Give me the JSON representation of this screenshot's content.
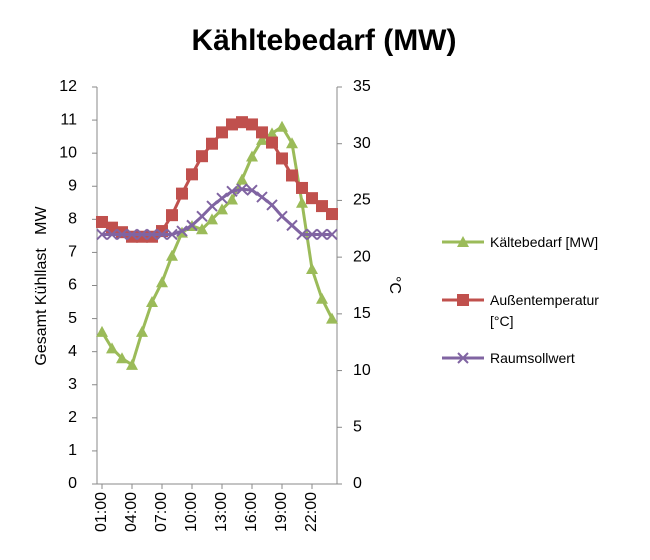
{
  "chart_data": {
    "type": "line",
    "title": "Kähltebedarf (MW)",
    "y_label": "Gesamt Kühllast   MW",
    "y2_label": "°C",
    "categories": [
      "01:00",
      null,
      null,
      "04:00",
      null,
      null,
      "07:00",
      null,
      null,
      "10:00",
      null,
      null,
      "13:00",
      null,
      null,
      "16:00",
      null,
      null,
      "19:00",
      null,
      null,
      "22:00",
      null,
      null
    ],
    "ylim": [
      0,
      12
    ],
    "yticks": [
      0,
      1,
      2,
      3,
      4,
      5,
      6,
      7,
      8,
      9,
      10,
      11,
      12
    ],
    "y2lim": [
      0,
      35
    ],
    "y2ticks": [
      0,
      5,
      10,
      15,
      20,
      25,
      30,
      35
    ],
    "grid": false,
    "legend": "right",
    "series": [
      {
        "name": "Kältebedarf [MW]",
        "color": "#9bbb59",
        "marker": "triangle",
        "values": [
          4.6,
          4.1,
          3.8,
          3.6,
          4.6,
          5.5,
          6.1,
          6.9,
          7.6,
          7.8,
          7.7,
          8.0,
          8.3,
          8.6,
          9.2,
          9.9,
          10.4,
          10.6,
          10.8,
          10.3,
          8.5,
          6.5,
          5.6,
          5.0
        ]
      },
      {
        "name": "Außentemperatur [°C]",
        "color": "#c0504d",
        "marker": "square",
        "axis": "y2",
        "values": [
          23.1,
          22.6,
          22.2,
          21.8,
          21.8,
          21.8,
          22.3,
          23.7,
          25.6,
          27.3,
          28.9,
          30.0,
          31.0,
          31.7,
          31.9,
          31.7,
          31.0,
          30.1,
          28.7,
          27.2,
          26.1,
          25.2,
          24.5,
          23.8
        ]
      },
      {
        "name": "Raumsollwert",
        "color": "#8064a2",
        "marker": "x",
        "axis": "y2",
        "values": [
          22,
          22,
          22,
          22,
          22,
          22,
          22,
          22,
          22.3,
          22.8,
          23.6,
          24.5,
          25.2,
          25.8,
          26.0,
          25.9,
          25.3,
          24.6,
          23.6,
          22.8,
          22,
          22,
          22,
          22
        ]
      }
    ]
  }
}
